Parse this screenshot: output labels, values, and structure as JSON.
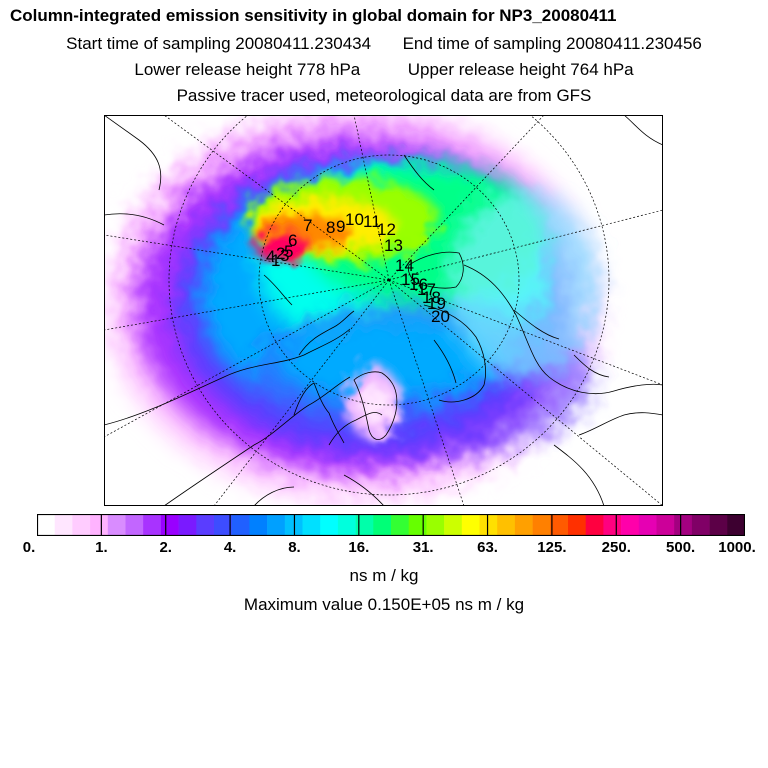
{
  "header": {
    "title": "Column-integrated emission sensitivity in global domain for NP3_20080411",
    "start_label": "Start time of sampling 20080411.230434",
    "end_label": "End time of sampling 20080411.230456",
    "lower_label": "Lower release height  778 hPa",
    "upper_label": "Upper release height  764 hPa",
    "tracer_note": "Passive tracer used, meteorological data are from GFS"
  },
  "map": {
    "trajectory_labels": [
      "1",
      "2",
      "3",
      "4",
      "5",
      "6",
      "7",
      "8",
      "9",
      "10",
      "11",
      "12",
      "13",
      "14",
      "15",
      "16",
      "17",
      "18",
      "19",
      "20"
    ]
  },
  "colorbar": {
    "colors": [
      "#ffffff",
      "#ffe6ff",
      "#ffccff",
      "#ffb3ff",
      "#d98cff",
      "#c266ff",
      "#a833ff",
      "#9900ff",
      "#7a1aff",
      "#5a3dff",
      "#3d4dff",
      "#2060ff",
      "#0080ff",
      "#00a0ff",
      "#00c0ff",
      "#00e0ff",
      "#00ffff",
      "#00ffdd",
      "#00ffaa",
      "#00ff77",
      "#33ff33",
      "#66ff00",
      "#99ff00",
      "#ccff00",
      "#ffff00",
      "#ffe000",
      "#ffc000",
      "#ffa000",
      "#ff8000",
      "#ff5a00",
      "#ff3000",
      "#ff0040",
      "#ff0080",
      "#ff00aa",
      "#e600b3",
      "#cc0099",
      "#a30080",
      "#800066",
      "#5c0047",
      "#3d0030"
    ],
    "tick_labels": [
      "0.",
      "1.",
      "2.",
      "4.",
      "8.",
      "16.",
      "31.",
      "63.",
      "125.",
      "250.",
      "500.",
      "1000."
    ],
    "units": "ns m / kg"
  },
  "footer": {
    "max_value": "Maximum value  0.150E+05 ns m / kg"
  }
}
